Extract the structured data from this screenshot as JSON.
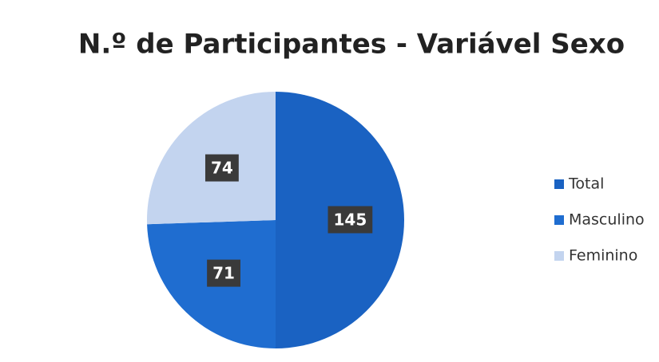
{
  "chart_data": {
    "type": "pie",
    "title": "N.º de Participantes - Variável Sexo",
    "categories": [
      "Total",
      "Masculino",
      "Feminino"
    ],
    "values": [
      145,
      71,
      74
    ],
    "colors": [
      "#1a62c2",
      "#1f6dd0",
      "#c3d4ef"
    ],
    "legend": "right"
  }
}
